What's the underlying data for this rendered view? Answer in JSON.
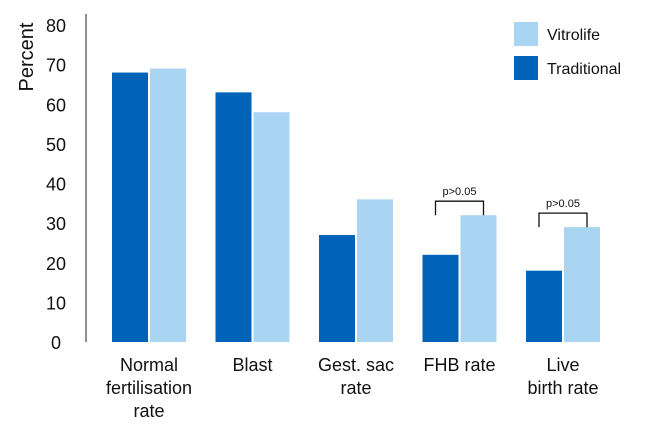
{
  "chart_data": {
    "type": "bar",
    "title": "",
    "xlabel": "",
    "ylabel": "Percent",
    "ylim": [
      0,
      80
    ],
    "yticks": [
      0,
      10,
      20,
      30,
      40,
      50,
      60,
      70,
      80
    ],
    "categories": [
      [
        "Normal",
        "fertilisation",
        "rate"
      ],
      [
        "Blast"
      ],
      [
        "Gest. sac",
        "rate"
      ],
      [
        "FHB rate"
      ],
      [
        "Live",
        "birth rate"
      ]
    ],
    "series": [
      {
        "name": "Traditional",
        "color": "#0063b7",
        "values": [
          68,
          63,
          27,
          22,
          18
        ]
      },
      {
        "name": "Vitrolife",
        "color": "#a9d4f2",
        "values": [
          69,
          58,
          36,
          32,
          29
        ]
      }
    ],
    "legend": {
      "placement": "top-right",
      "order": [
        "Vitrolife",
        "Traditional"
      ]
    },
    "grid": false,
    "annotations": [
      {
        "category_index": 3,
        "text": "p>0.05"
      },
      {
        "category_index": 4,
        "text": "p>0.05"
      }
    ]
  }
}
